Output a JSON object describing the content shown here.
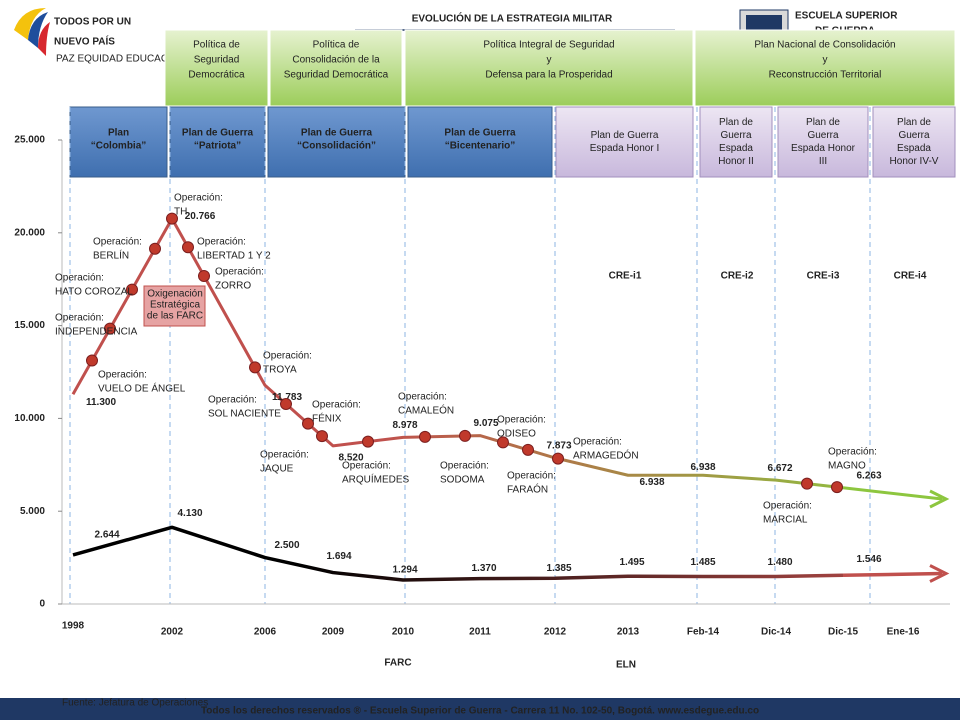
{
  "chart_data": {
    "type": "line",
    "title": "EVOLUCIÓN DE LA ESTRATEGIA MILITAR",
    "categories": [
      "1998",
      "2002",
      "2006",
      "2009",
      "2010",
      "2011",
      "2012",
      "2013",
      "Feb-14",
      "Dic-14",
      "Dic-15",
      "Ene-16"
    ],
    "series": [
      {
        "name": "FARC",
        "color": "#c0504d",
        "gradient_to": "#8dc63f",
        "values": [
          11300,
          20766,
          11783,
          8520,
          8978,
          9075,
          7873,
          6938,
          6938,
          6672,
          6263,
          null
        ],
        "value_labels": [
          "11.300",
          "20.766",
          "11.783",
          "8.520",
          "8.978",
          "9.075",
          "7.873",
          "6.938",
          "6.938",
          "6.672",
          "6.263",
          null
        ]
      },
      {
        "name": "ELN",
        "color": "#000000",
        "gradient_to": "#c0504d",
        "values": [
          2644,
          4130,
          2500,
          1694,
          1294,
          1370,
          1385,
          1495,
          1485,
          1480,
          1546,
          null
        ],
        "value_labels": [
          "2.644",
          "4.130",
          "2.500",
          "1.694",
          "1.294",
          "1.370",
          "1.385",
          "1.495",
          "1.485",
          "1.480",
          "1.546",
          null
        ]
      }
    ],
    "ylim": [
      0,
      25000
    ],
    "yticks": [
      {
        "value": 0,
        "label": "0"
      },
      {
        "value": 5000,
        "label": "5.000"
      },
      {
        "value": 10000,
        "label": "10.000"
      },
      {
        "value": 15000,
        "label": "15.000"
      },
      {
        "value": 20000,
        "label": "20.000"
      },
      {
        "value": 25000,
        "label": "25.000"
      }
    ],
    "operations": [
      [
        "Operación:",
        "VUELO DE ÁNGEL"
      ],
      [
        "Operación:",
        "INDEPENDENCIA"
      ],
      [
        "Operación:",
        "HATO COROZAL"
      ],
      [
        "Operación:",
        "BERLÍN"
      ],
      [
        "Operación:",
        "TH"
      ],
      [
        "Operación:",
        "LIBERTAD 1 Y 2"
      ],
      [
        "Operación:",
        "ZORRO"
      ],
      [
        "Operación:",
        "TROYA"
      ],
      [
        "Operación:",
        "SOL NACIENTE"
      ],
      [
        "Operación:",
        "FÉNIX"
      ],
      [
        "Operación:",
        "JAQUE"
      ],
      [
        "Operación:",
        "ARQUÍMEDES"
      ],
      [
        "Operación:",
        "CAMALEÓN"
      ],
      [
        "Operación:",
        "SODOMA"
      ],
      [
        "Operación:",
        "ODISEO"
      ],
      [
        "Operación:",
        "FARAÓN"
      ],
      [
        "Operación:",
        "ARMAGEDÓN"
      ],
      [
        "Operación:",
        "MARCIAL"
      ],
      [
        "Operación:",
        "MAGNO"
      ]
    ],
    "callout": [
      "Oxigenación",
      "Estratégica",
      "de las FARC"
    ]
  },
  "logos": {
    "left": [
      "TODOS POR UN",
      "NUEVO PAÍS",
      "PAZ  EQUIDAD  EDUCACIÓN"
    ],
    "right": [
      "ESCUELA SUPERIOR",
      "DE GUERRA"
    ]
  },
  "policies": [
    [
      "Política de",
      "Seguridad",
      "Democrática"
    ],
    [
      "Política de",
      "Consolidación de la",
      "Seguridad Democrática"
    ],
    [
      "Política Integral de Seguridad",
      "y",
      "Defensa para la Prosperidad"
    ],
    [
      "Plan Nacional de  Consolidación",
      "y",
      "Reconstrucción Territorial"
    ]
  ],
  "plans": [
    [
      "Plan",
      "“Colombia”"
    ],
    [
      "Plan de Guerra",
      "“Patriota”"
    ],
    [
      "Plan de Guerra",
      "“Consolidación”"
    ],
    [
      "Plan de Guerra",
      "“Bicentenario”"
    ],
    [
      "Plan de Guerra",
      "Espada Honor I"
    ],
    [
      "Plan de",
      "Guerra",
      "Espada",
      "Honor II"
    ],
    [
      "Plan de",
      "Guerra",
      "Espada Honor",
      "III"
    ],
    [
      "Plan de",
      "Guerra",
      "Espada",
      "Honor IV-V"
    ]
  ],
  "phases": [
    "CRE-i1",
    "CRE-i2",
    "CRE-i3",
    "CRE-i4"
  ],
  "footer": {
    "source": "Fuente: Jefatura de Operaciones",
    "rights": "Todos los derechos reservados ® - Escuela Superior de Guerra - Carrera 11 No. 102-50, Bogotá. www.esdegue.edu.co"
  }
}
